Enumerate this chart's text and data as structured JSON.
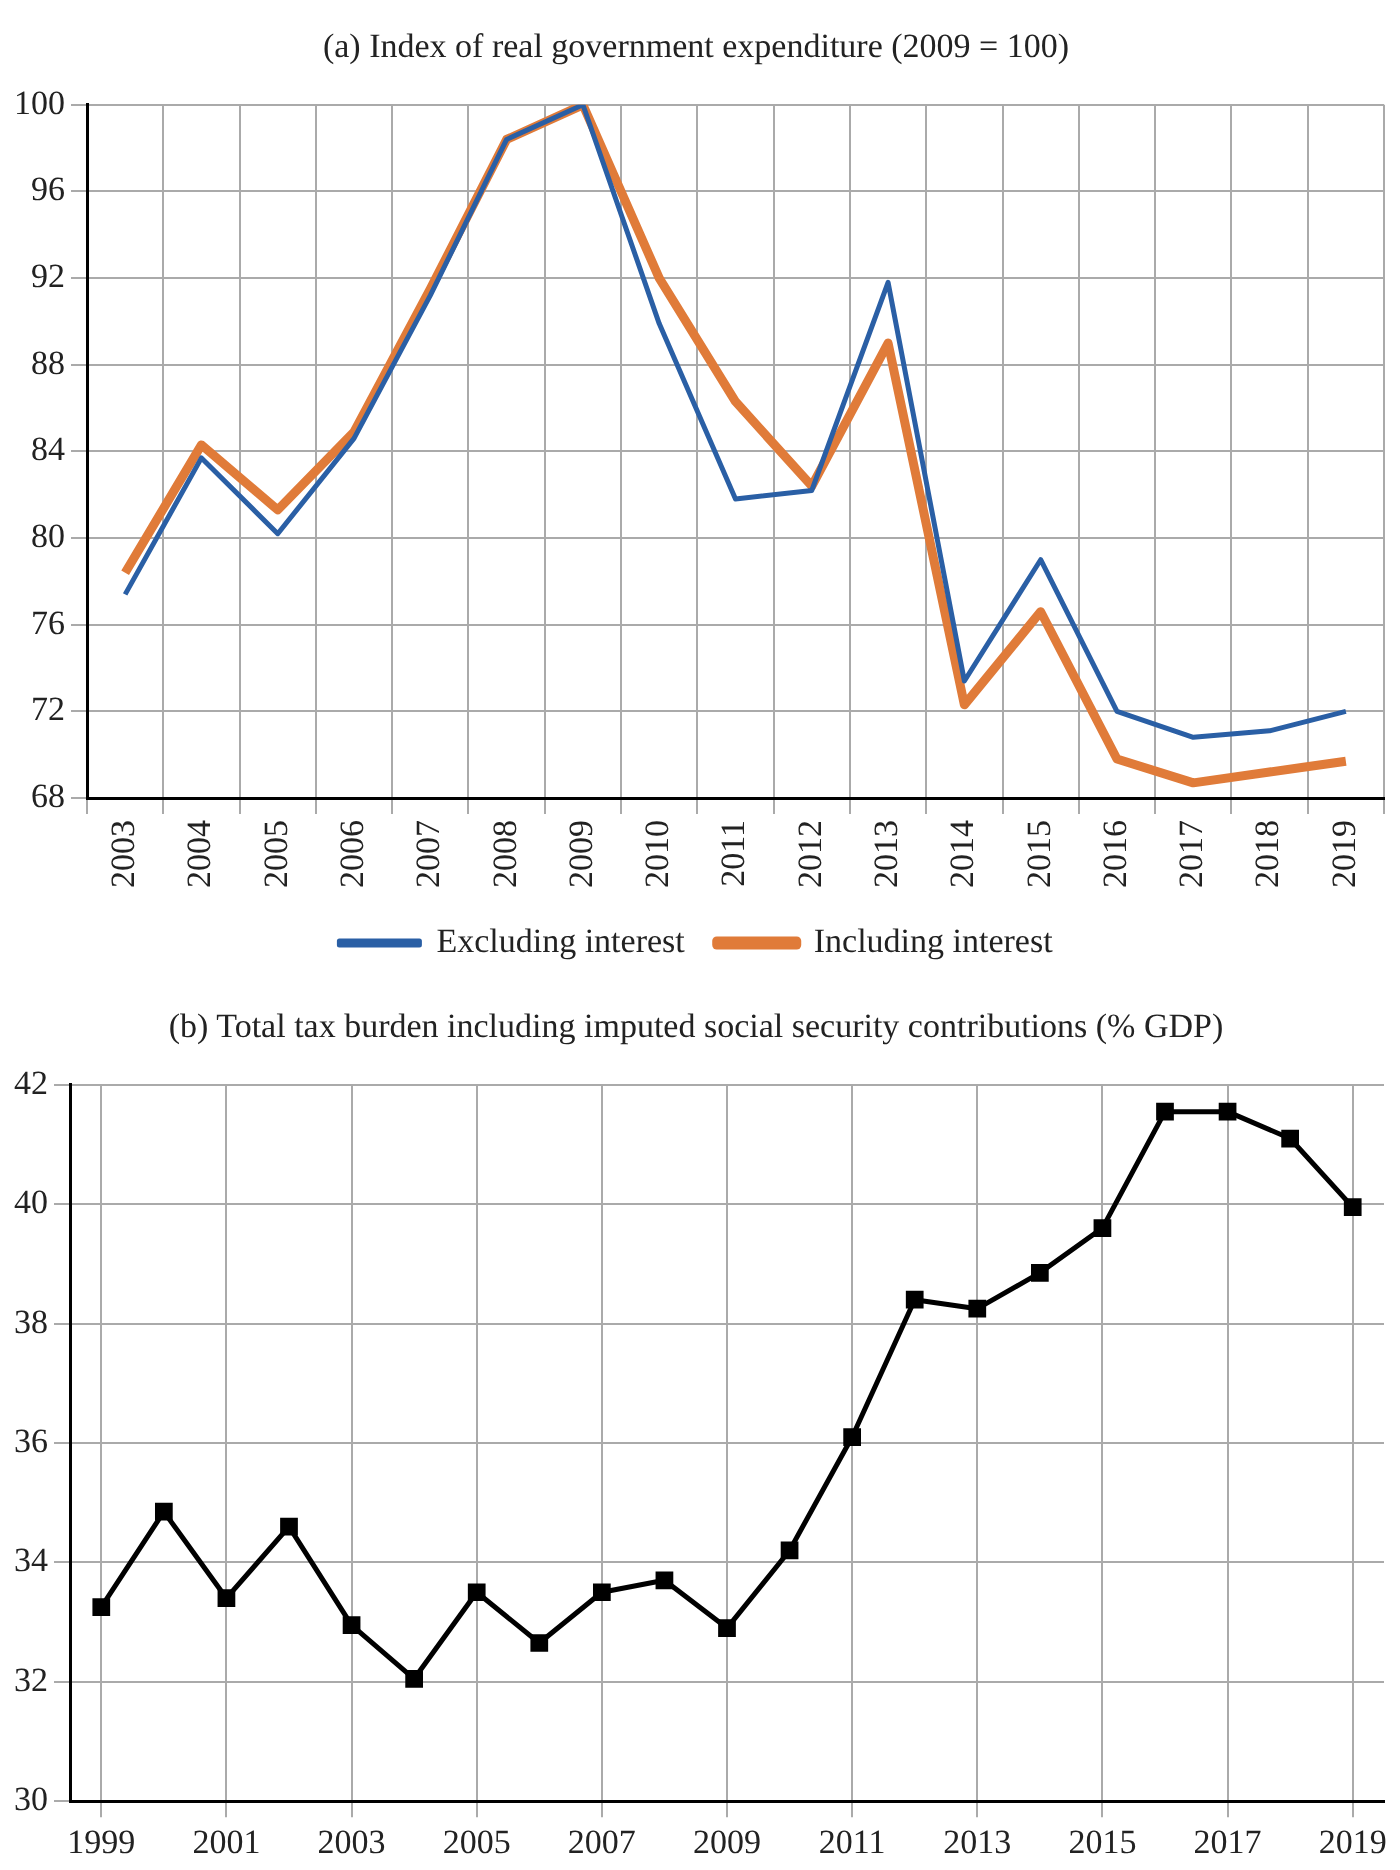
{
  "chart_data": [
    {
      "type": "line",
      "title": "(a) Index of real government expenditure (2009 = 100)",
      "categories": [
        "2003",
        "2004",
        "2005",
        "2006",
        "2007",
        "2008",
        "2009",
        "2010",
        "2011",
        "2012",
        "2013",
        "2014",
        "2015",
        "2016",
        "2017",
        "2018",
        "2019"
      ],
      "series": [
        {
          "name": "Excluding interest",
          "color": "#2a5fa5",
          "values": [
            77.4,
            83.7,
            80.2,
            84.6,
            91.2,
            98.4,
            100,
            89.9,
            81.8,
            82.2,
            91.8,
            73.4,
            79.0,
            72.0,
            70.8,
            71.1,
            72.0
          ]
        },
        {
          "name": "Including interest",
          "color": "#e07b39",
          "values": [
            78.4,
            84.3,
            81.3,
            84.9,
            91.5,
            98.4,
            100,
            92.0,
            86.3,
            82.4,
            89.0,
            72.3,
            76.6,
            69.8,
            68.7,
            69.2,
            69.7
          ]
        }
      ],
      "ylim": [
        68,
        100
      ],
      "yticks": [
        68,
        72,
        76,
        80,
        84,
        88,
        92,
        96,
        100
      ],
      "grid": true,
      "legend": "bottom",
      "marker": "none",
      "line_style": "solid"
    },
    {
      "type": "line",
      "title": "(b) Total tax burden including imputed social security contributions (% GDP)",
      "categories": [
        "1999",
        null,
        "2001",
        null,
        "2003",
        null,
        "2005",
        null,
        "2007",
        null,
        "2009",
        null,
        "2011",
        null,
        "2013",
        null,
        "2015",
        null,
        "2017",
        null,
        "2019"
      ],
      "series": [
        {
          "color": "#000000",
          "values": [
            33.25,
            34.85,
            33.4,
            34.6,
            32.95,
            32.05,
            33.5,
            32.65,
            33.5,
            33.7,
            32.9,
            34.2,
            36.1,
            38.4,
            38.25,
            38.85,
            39.6,
            41.55,
            41.55,
            41.1,
            39.95
          ]
        }
      ],
      "ylim": [
        30,
        42
      ],
      "yticks": [
        30,
        32,
        34,
        36,
        38,
        40,
        42
      ],
      "grid": true,
      "marker": "square",
      "line_style": "solid"
    }
  ]
}
